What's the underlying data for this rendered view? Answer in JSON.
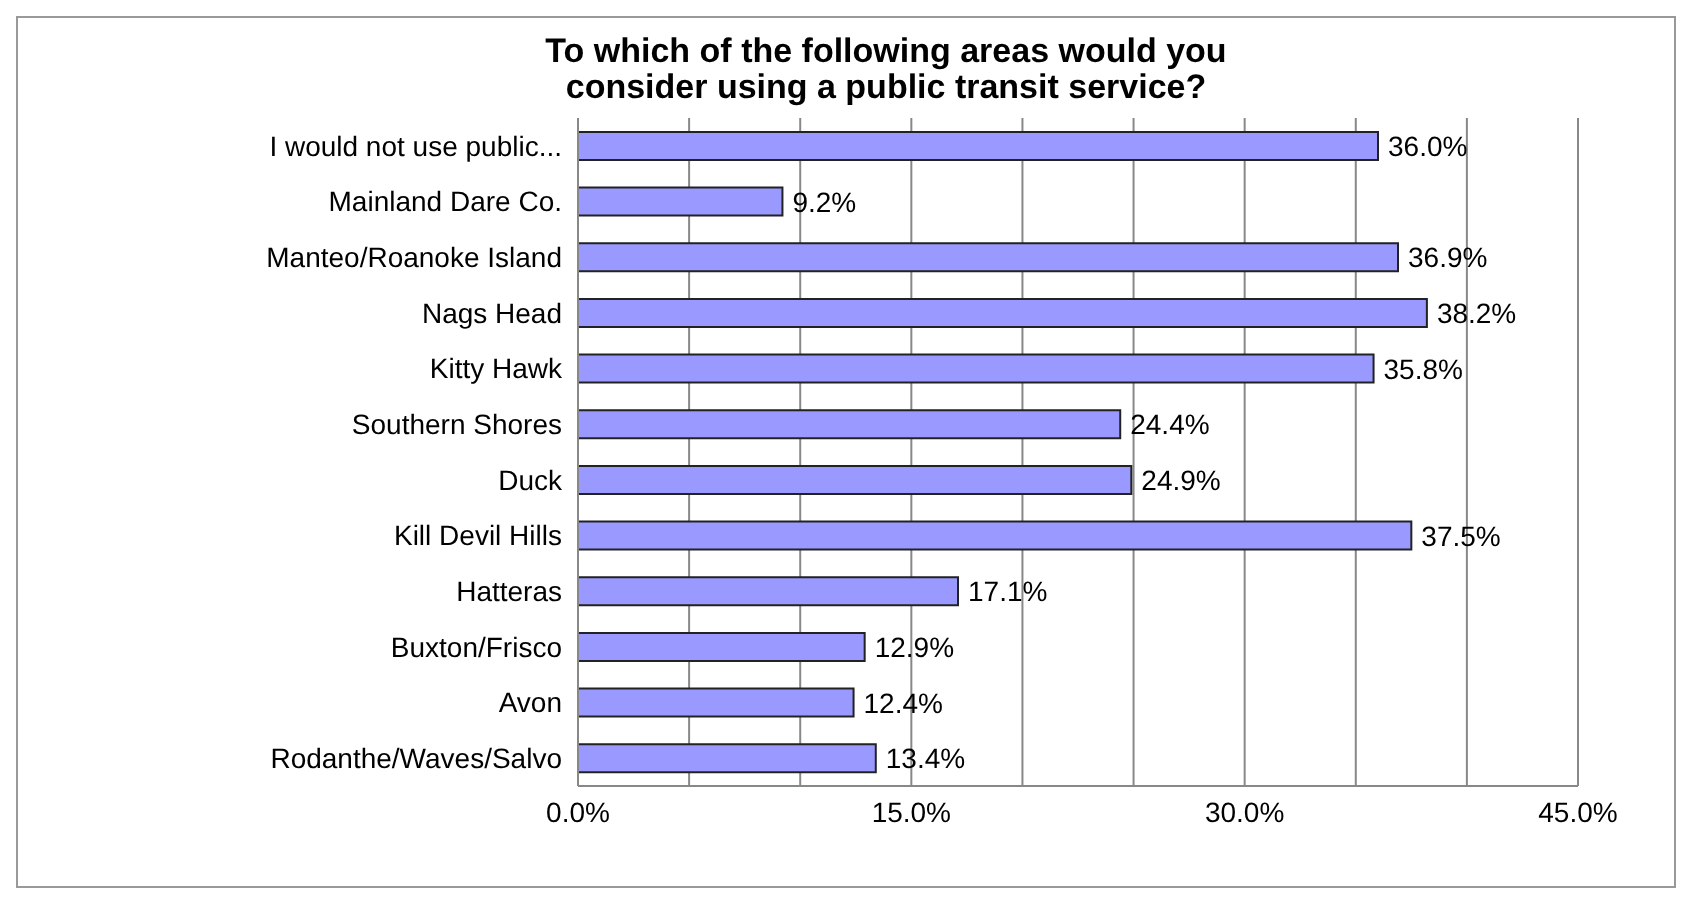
{
  "chart_data": {
    "type": "bar",
    "orientation": "horizontal",
    "title": "To which of the following areas would you consider using a public transit service?",
    "categories": [
      "I would not use public...",
      "Mainland Dare Co.",
      "Manteo/Roanoke Island",
      "Nags Head",
      "Kitty Hawk",
      "Southern Shores",
      "Duck",
      "Kill Devil Hills",
      "Hatteras",
      "Buxton/Frisco",
      "Avon",
      "Rodanthe/Waves/Salvo"
    ],
    "values": [
      36.0,
      9.2,
      36.9,
      38.2,
      35.8,
      24.4,
      24.9,
      37.5,
      17.1,
      12.9,
      12.4,
      13.4
    ],
    "value_labels": [
      "36.0%",
      "9.2%",
      "36.9%",
      "38.2%",
      "35.8%",
      "24.4%",
      "24.9%",
      "37.5%",
      "17.1%",
      "12.9%",
      "12.4%",
      "13.4%"
    ],
    "color": "#9999ff",
    "xlim": [
      0,
      45
    ],
    "xticks": [
      {
        "value": 0,
        "label": "0.0%"
      },
      {
        "value": 5,
        "label": null
      },
      {
        "value": 10,
        "label": null
      },
      {
        "value": 15,
        "label": "15.0%"
      },
      {
        "value": 20,
        "label": null
      },
      {
        "value": 25,
        "label": null
      },
      {
        "value": 30,
        "label": "30.0%"
      },
      {
        "value": 35,
        "label": null
      },
      {
        "value": 40,
        "label": null
      },
      {
        "value": 45,
        "label": "45.0%"
      }
    ],
    "grid": "x",
    "legend": false
  }
}
